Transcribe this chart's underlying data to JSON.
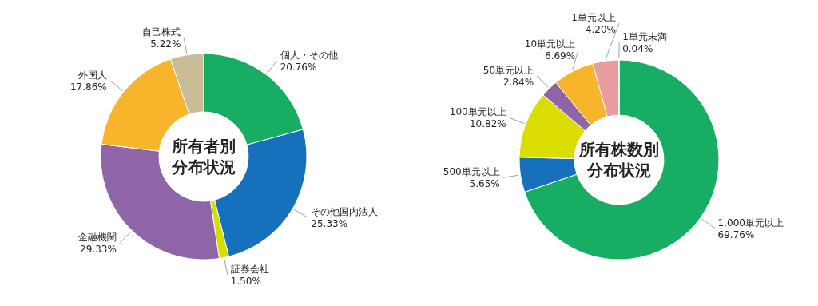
{
  "chart_data": [
    {
      "type": "donut",
      "title": "所有者別分布状況",
      "categories": [
        "個人・その他",
        "その他国内法人",
        "証券会社",
        "金融機関",
        "外国人",
        "自己株式"
      ],
      "values": [
        20.76,
        25.33,
        1.5,
        29.33,
        17.86,
        5.22
      ],
      "value_labels": [
        "20.76%",
        "25.33%",
        "1.50%",
        "29.33%",
        "17.86%",
        "5.22%"
      ],
      "colors": [
        "#17ad63",
        "#1670bb",
        "#d6dd00",
        "#8e66a8",
        "#f8b42a",
        "#c9bd98"
      ]
    },
    {
      "type": "donut",
      "title": "所有株数別分布状況",
      "categories": [
        "1,000単元以上",
        "500単元以上",
        "100単元以上",
        "50単元以上",
        "10単元以上",
        "1単元以上",
        "1単元未満"
      ],
      "values": [
        69.76,
        5.65,
        10.82,
        2.84,
        6.69,
        4.2,
        0.04
      ],
      "value_labels": [
        "69.76%",
        "5.65%",
        "10.82%",
        "2.84%",
        "6.69%",
        "4.20%",
        "0.04%"
      ],
      "colors": [
        "#17ad63",
        "#1670bb",
        "#dbdd00",
        "#8e66a8",
        "#f8b42a",
        "#e89c9c",
        "#c9bd98"
      ]
    }
  ]
}
